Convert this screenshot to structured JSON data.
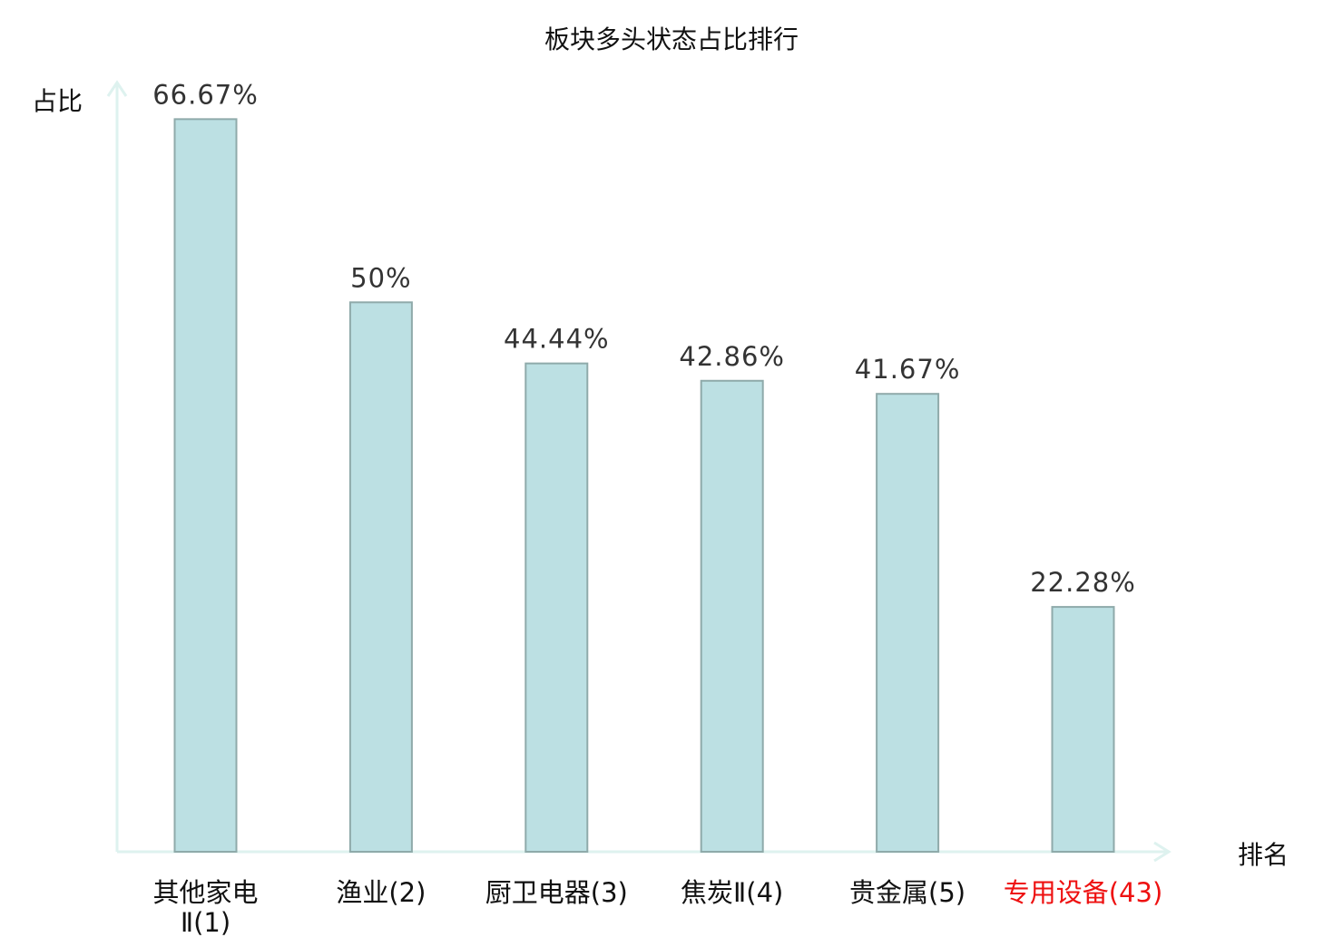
{
  "chart_data": {
    "type": "bar",
    "title": "板块多头状态占比排行",
    "ylabel": "占比",
    "xlabel": "排名",
    "categories": [
      "其他家电Ⅱ(1)",
      "渔业(2)",
      "厨卫电器(3)",
      "焦炭Ⅱ(4)",
      "贵金属(5)",
      "专用设备(43)"
    ],
    "category_lines": [
      [
        "其他家电",
        "Ⅱ(1)"
      ],
      [
        "渔业(2)"
      ],
      [
        "厨卫电器(3)"
      ],
      [
        "焦炭Ⅱ(4)"
      ],
      [
        "贵金属(5)"
      ],
      [
        "专用设备(43)"
      ]
    ],
    "values": [
      66.67,
      50,
      44.44,
      42.86,
      41.67,
      22.28
    ],
    "data_labels": [
      "66.67%",
      "50%",
      "44.44%",
      "42.86%",
      "41.67%",
      "22.28%"
    ],
    "highlighted_index": 5,
    "ylim": [
      0,
      70
    ],
    "grid": false,
    "colors": {
      "bar_fill": "#bce0e3",
      "bar_stroke": "#8faaaa",
      "axis": "#def2ef",
      "label": "#111111",
      "data_label": "#333333",
      "highlight": "#ee1111"
    }
  }
}
